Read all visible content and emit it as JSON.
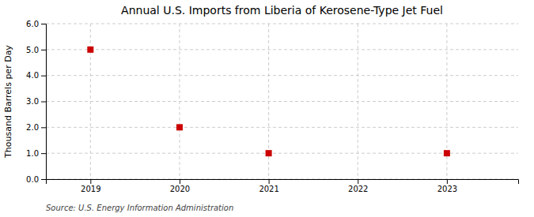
{
  "chart_data": {
    "type": "scatter",
    "title": "Annual U.S. Imports from Liberia of Kerosene-Type Jet Fuel",
    "ylabel": "Thousand Barrels per Day",
    "source": "Source: U.S. Energy Information Administration",
    "x": [
      2019,
      2020,
      2021,
      2023
    ],
    "values": [
      5.0,
      2.0,
      1.0,
      1.0
    ],
    "color": "#cc0000",
    "marker": "square",
    "xlim": [
      2018.5,
      2023.8
    ],
    "ylim": [
      0.0,
      6.0
    ],
    "xticks": [
      2019,
      2020,
      2021,
      2022,
      2023
    ],
    "yticks": [
      {
        "value": 0,
        "label": "0.0"
      },
      {
        "value": 1,
        "label": "1.0"
      },
      {
        "value": 2,
        "label": "2.0"
      },
      {
        "value": 3,
        "label": "3.0"
      },
      {
        "value": 4,
        "label": "4.0"
      },
      {
        "value": 5,
        "label": "5.0"
      },
      {
        "value": 6,
        "label": "6.0"
      }
    ],
    "grid": true
  }
}
